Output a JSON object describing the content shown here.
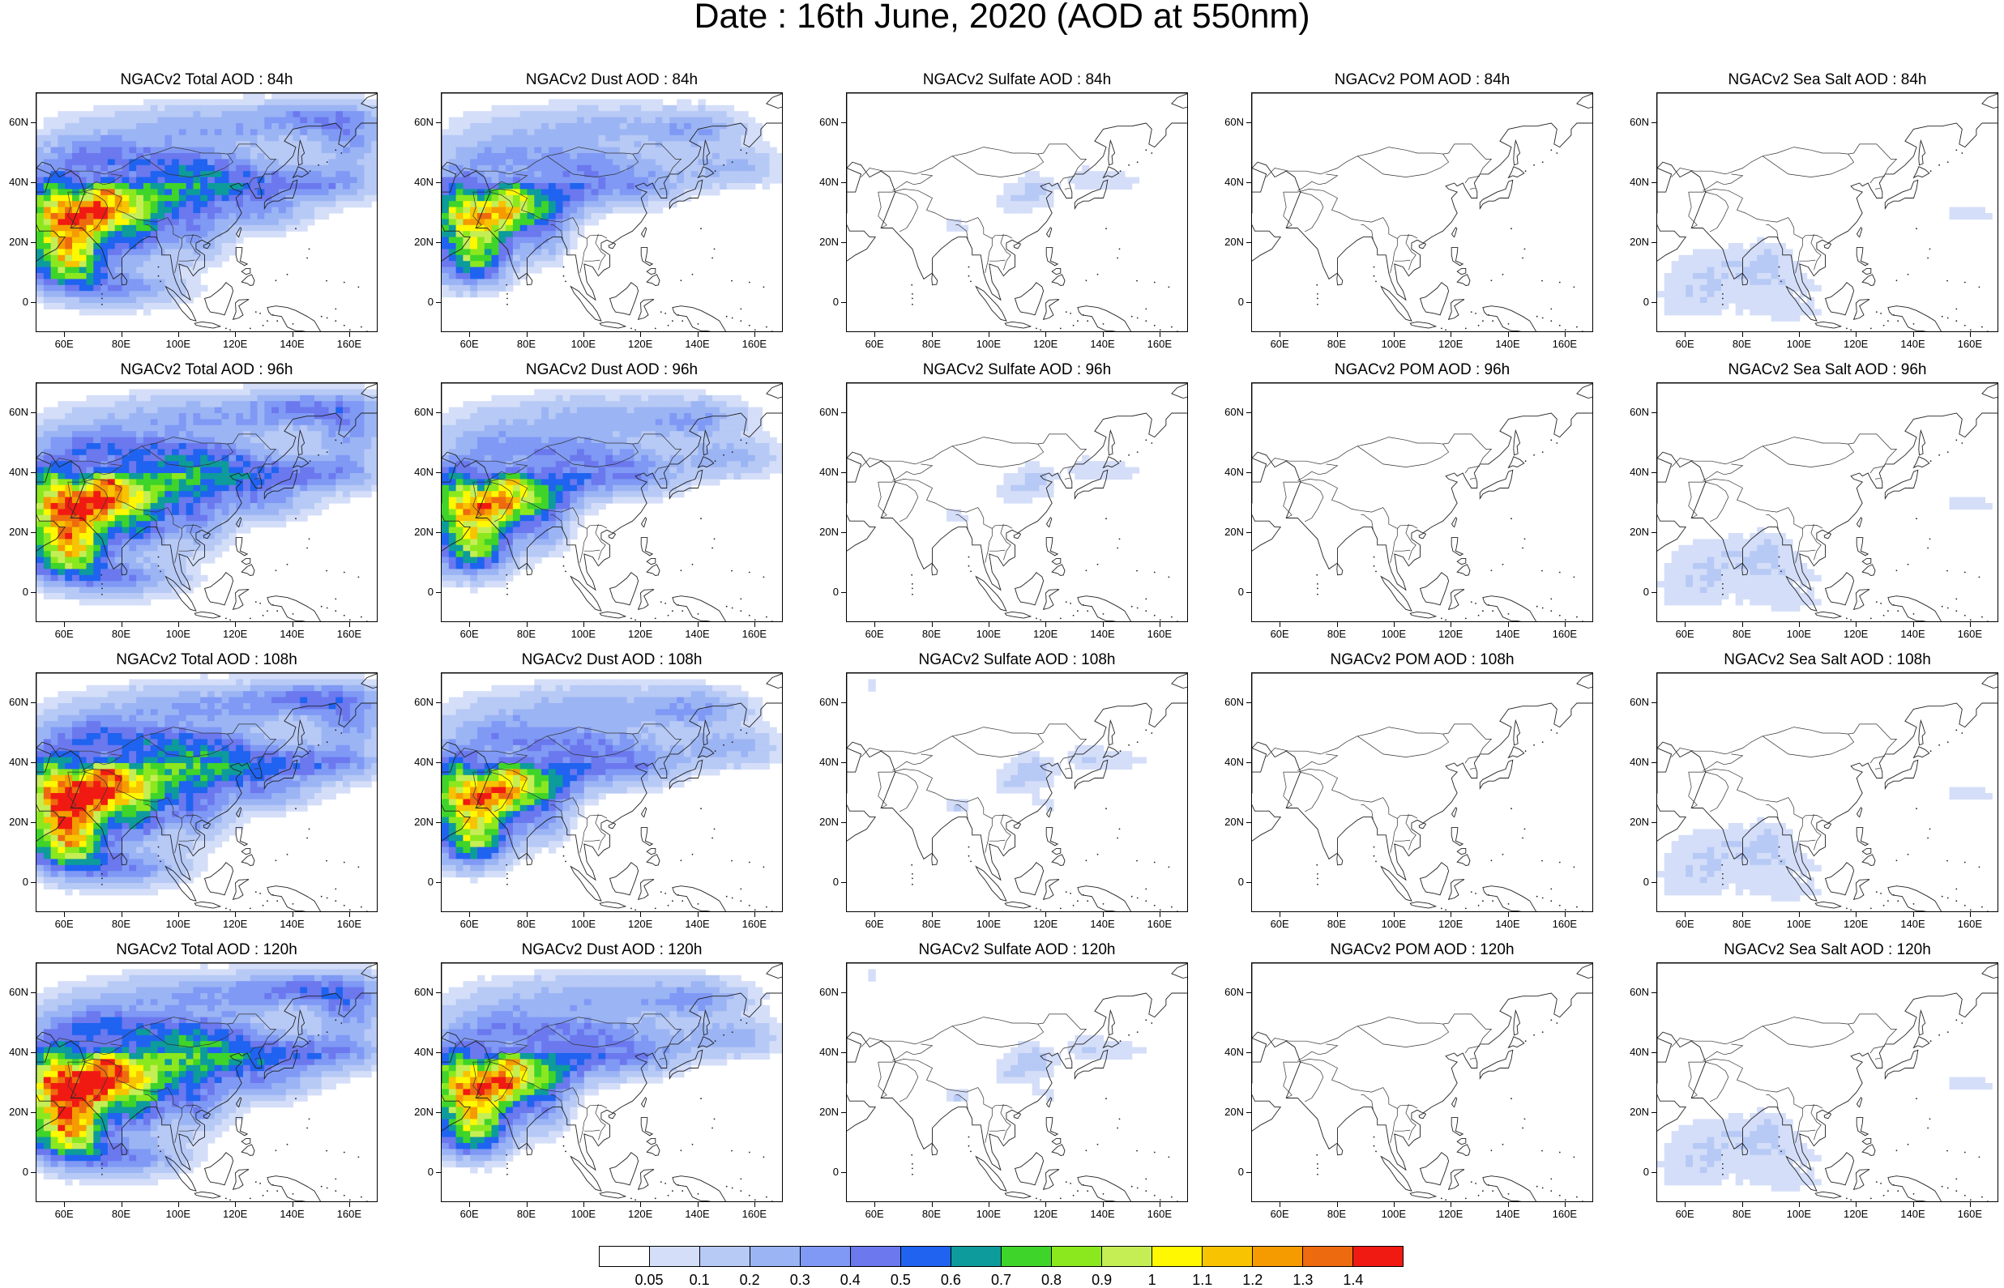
{
  "title": "Date : 16th June, 2020 (AOD at 550nm)",
  "lat_labels": [
    "60N",
    "40N",
    "20N",
    "0"
  ],
  "lon_labels": [
    "60E",
    "80E",
    "100E",
    "120E",
    "140E",
    "160E"
  ],
  "panels": [
    {
      "title": "NGACv2 Total AOD : 84h",
      "field": "total",
      "level": 0.3
    },
    {
      "title": "NGACv2 Dust AOD : 84h",
      "field": "dust",
      "level": 0.25
    },
    {
      "title": "NGACv2 Sulfate AOD : 84h",
      "field": "sulfate",
      "level": 0.05
    },
    {
      "title": "NGACv2 POM AOD : 84h",
      "field": "pom",
      "level": 0.01
    },
    {
      "title": "NGACv2 Sea Salt AOD : 84h",
      "field": "seasalt",
      "level": 0.05
    },
    {
      "title": "NGACv2 Total AOD : 96h",
      "field": "total",
      "level": 0.32
    },
    {
      "title": "NGACv2 Dust AOD : 96h",
      "field": "dust",
      "level": 0.27
    },
    {
      "title": "NGACv2 Sulfate AOD : 96h",
      "field": "sulfate",
      "level": 0.05
    },
    {
      "title": "NGACv2 POM AOD : 96h",
      "field": "pom",
      "level": 0.01
    },
    {
      "title": "NGACv2 Sea Salt AOD : 96h",
      "field": "seasalt",
      "level": 0.05
    },
    {
      "title": "NGACv2 Total AOD : 108h",
      "field": "total",
      "level": 0.34
    },
    {
      "title": "NGACv2 Dust AOD : 108h",
      "field": "dust",
      "level": 0.28
    },
    {
      "title": "NGACv2 Sulfate AOD : 108h",
      "field": "sulfate",
      "level": 0.06
    },
    {
      "title": "NGACv2 POM AOD : 108h",
      "field": "pom",
      "level": 0.01
    },
    {
      "title": "NGACv2 Sea Salt AOD : 108h",
      "field": "seasalt",
      "level": 0.05
    },
    {
      "title": "NGACv2 Total AOD : 120h",
      "field": "total",
      "level": 0.35
    },
    {
      "title": "NGACv2 Dust AOD : 120h",
      "field": "dust",
      "level": 0.29
    },
    {
      "title": "NGACv2 Sulfate AOD : 120h",
      "field": "sulfate",
      "level": 0.06
    },
    {
      "title": "NGACv2 POM AOD : 120h",
      "field": "pom",
      "level": 0.01
    },
    {
      "title": "NGACv2 Sea Salt  AOD : 120h",
      "field": "seasalt",
      "level": 0.05
    }
  ],
  "colorbar": {
    "colors": [
      "#ffffff",
      "#d4def8",
      "#b7c9f5",
      "#9bb4f4",
      "#7f99f5",
      "#6b78ee",
      "#1f63f0",
      "#0d9b9b",
      "#3fd42a",
      "#8ce81e",
      "#c5ee55",
      "#fff800",
      "#f8c300",
      "#f59b00",
      "#ee6a0f",
      "#f11a12"
    ],
    "labels": [
      "0.05",
      "0.1",
      "0.2",
      "0.3",
      "0.4",
      "0.5",
      "0.6",
      "0.7",
      "0.8",
      "0.9",
      "1",
      "1.1",
      "1.2",
      "1.3",
      "1.4"
    ]
  }
}
